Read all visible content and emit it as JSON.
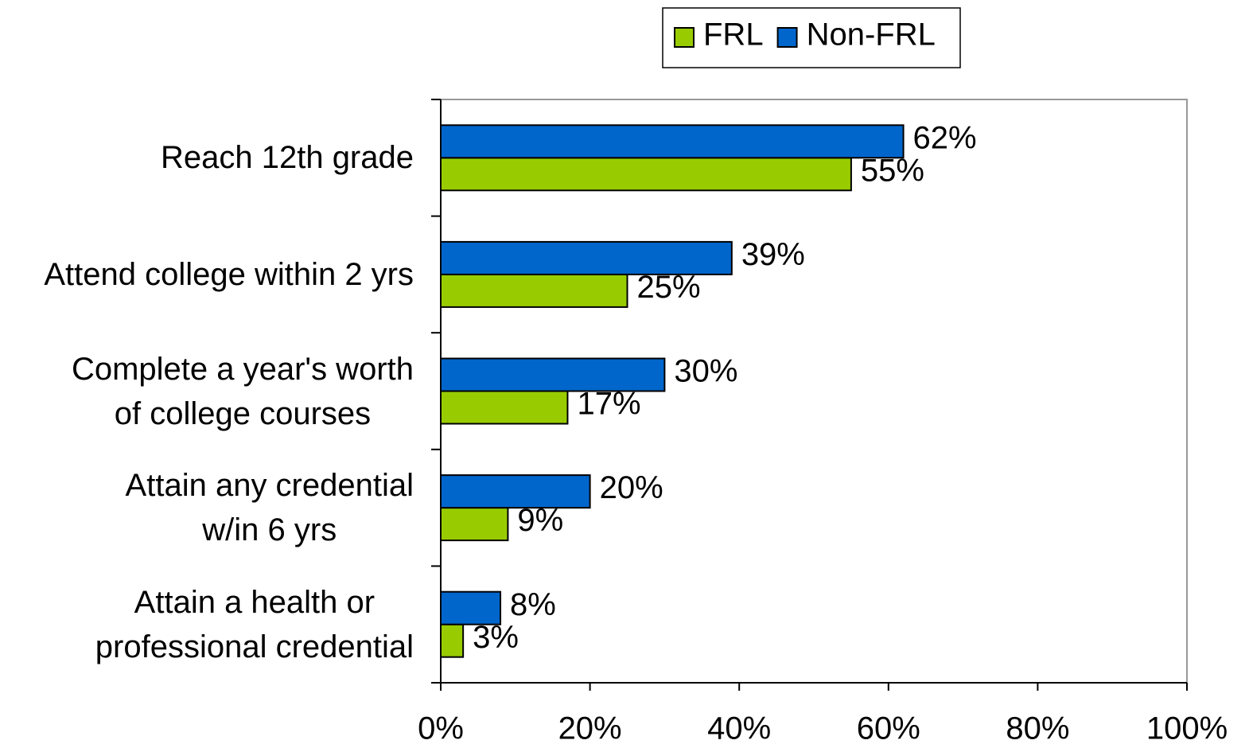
{
  "chart_data": {
    "type": "hbar",
    "categories": [
      [
        "Reach 12th grade"
      ],
      [
        "Attend college within 2 yrs"
      ],
      [
        "Complete a year's worth",
        "of college courses"
      ],
      [
        "Attain any credential",
        "w/in 6 yrs"
      ],
      [
        "Attain a health or",
        "professional credential"
      ]
    ],
    "series": [
      {
        "name": "FRL",
        "color": "#99cc00",
        "values": [
          55,
          25,
          17,
          9,
          3
        ],
        "value_labels": [
          "55%",
          "25%",
          "17%",
          "9%",
          "3%"
        ]
      },
      {
        "name": "Non-FRL",
        "color": "#0066cc",
        "values": [
          62,
          39,
          30,
          20,
          8
        ],
        "value_labels": [
          "62%",
          "39%",
          "30%",
          "20%",
          "8%"
        ]
      }
    ],
    "xlim": [
      0,
      100
    ],
    "xticks": [
      {
        "value": 0,
        "label": "0%"
      },
      {
        "value": 20,
        "label": "20%"
      },
      {
        "value": 40,
        "label": "40%"
      },
      {
        "value": 60,
        "label": "60%"
      },
      {
        "value": 80,
        "label": "80%"
      },
      {
        "value": 100,
        "label": "100%"
      }
    ],
    "legend": "top"
  }
}
